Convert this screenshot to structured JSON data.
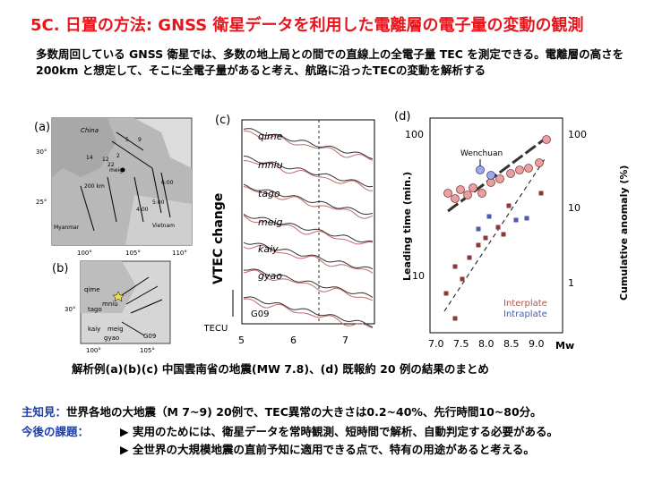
{
  "title": "5C. 日置の方法:  GNSS 衛星データを利用した電離層の電子量の変動の観測",
  "intro": "多数周回している GNSS 衛星では、多数の地上局との間での直線上の全電子量 TEC を測定できる。電離層の高さを 200km と想定して、そこに全電子量があると考え、航路に沿ったTECの変動を解析する",
  "panels": {
    "a": {
      "label": "(a)",
      "china": "China",
      "myanmar": "Myanmar",
      "vietnam": "Vietnam",
      "dist": "200 km",
      "meig": "meig",
      "lat30": "30°",
      "lat25": "25°",
      "lon100": "100°",
      "lon105": "105°",
      "lon110": "110°",
      "n14": "14",
      "n12": "12",
      "n22": "22",
      "n2": "2",
      "n5": "5",
      "n9": "9",
      "n600": "6:00",
      "n500": "5:00",
      "n400": "4:00"
    },
    "b": {
      "label": "(b)",
      "qime": "qime",
      "mniu": "mniu",
      "tago": "tago",
      "kaiy": "kaiy",
      "meig": "meig",
      "gyao": "gyao",
      "g09": "G09",
      "lat30": "30°",
      "lon100": "100°",
      "lon105": "105°"
    },
    "c": {
      "label": "(c)",
      "ylabel": "VTEC change",
      "stations": [
        "qime",
        "mniu",
        "tago",
        "meig",
        "kaiy",
        "gyao"
      ],
      "g09": "G09",
      "scale": "2 TECU",
      "xticks": [
        "5",
        "6",
        "7"
      ]
    },
    "d": {
      "label": "(d)",
      "ylabel_left": "Leading time (min.)",
      "ylabel_right": "Cumulative anomaly (%)",
      "left_ticks": [
        "100",
        "10"
      ],
      "right_ticks": [
        "100",
        "10",
        "1"
      ],
      "xticks": [
        "7.0",
        "7.5",
        "8.0",
        "8.5",
        "9.0"
      ],
      "xunit": "Mw",
      "wenchuan": "Wenchuan",
      "interplate": "Interplate",
      "intraplate": "Intraplate",
      "interplate_color": "#b4524a",
      "intraplate_color": "#4a5ab4"
    }
  },
  "caption": "解析例(a)(b)(c) 中国雲南省の地震(MW 7.8)、(d)    既報約 20 例の結果のまとめ",
  "finding_label": "主知見：",
  "finding_text": "世界各地の大地震（M 7~9) 20例で、TEC異常の大きさは0.2~40%、先行時間10~80分。",
  "future_label": "今後の課題：",
  "future_1": "▶  実用のためには、衛星データを常時観測、短時間で解析、自動判定する必要がある。",
  "future_2": "▶   全世界の大規模地震の直前予知に適用できる点で、特有の用途があると考える。",
  "colors": {
    "title": "#e8141c",
    "lead": "#1a3fb0"
  }
}
